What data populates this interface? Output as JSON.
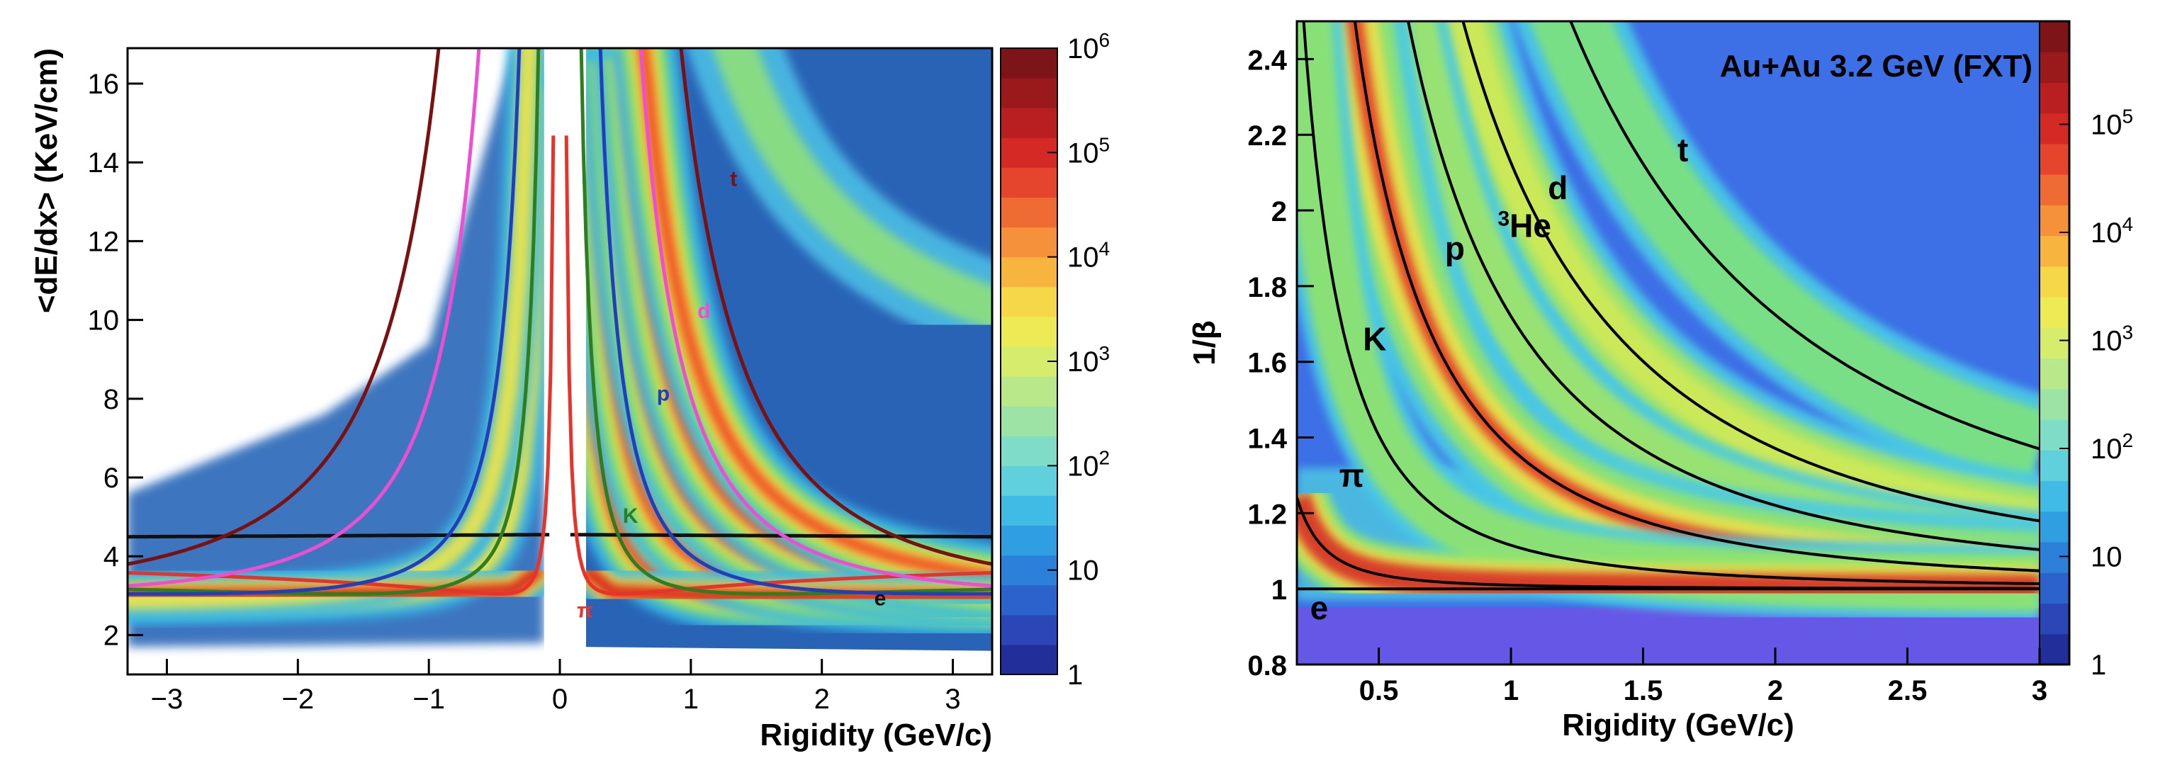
{
  "chart_data": [
    {
      "type": "heatmap",
      "title": "",
      "xlabel": "Rigidity (GeV/c)",
      "ylabel": "<dE/dx> (KeV/cm)",
      "xlim": [
        -3.3,
        3.3
      ],
      "ylim": [
        1.0,
        16.9
      ],
      "x_ticks": [
        -3,
        -2,
        -1,
        0,
        1,
        2,
        3
      ],
      "x_tick_labels": [
        "−3",
        "−2",
        "−1",
        "0",
        "1",
        "2",
        "3"
      ],
      "y_ticks": [
        2,
        4,
        6,
        8,
        10,
        12,
        14,
        16
      ],
      "y_tick_labels": [
        "2",
        "4",
        "6",
        "8",
        "10",
        "12",
        "14",
        "16"
      ],
      "z_scale": "log",
      "colorbar": {
        "range": [
          1,
          1000000
        ],
        "labels": [
          {
            "value": 1,
            "base": "1",
            "exp": ""
          },
          {
            "value": 10,
            "base": "10",
            "exp": ""
          },
          {
            "value": 100,
            "base": "10",
            "exp": "2"
          },
          {
            "value": 1000,
            "base": "10",
            "exp": "3"
          },
          {
            "value": 10000,
            "base": "10",
            "exp": "4"
          },
          {
            "value": 100000,
            "base": "10",
            "exp": "5"
          },
          {
            "value": 1000000,
            "base": "10",
            "exp": "6"
          }
        ]
      },
      "curves": [
        {
          "label": "e",
          "color": "#111111",
          "label_pos": [
            2.4,
            2.75
          ]
        },
        {
          "label": "π",
          "color": "#e8332a",
          "label_pos": [
            0.13,
            2.45
          ]
        },
        {
          "label": "K",
          "color": "#2e7d1f",
          "label_pos": [
            0.48,
            4.85
          ]
        },
        {
          "label": "p",
          "color": "#1f3fbf",
          "label_pos": [
            0.74,
            7.95
          ]
        },
        {
          "label": "d",
          "color": "#ee4fd2",
          "label_pos": [
            1.05,
            10.05
          ]
        },
        {
          "label": "t",
          "color": "#7a1010",
          "label_pos": [
            1.3,
            13.4
          ]
        }
      ]
    },
    {
      "type": "heatmap",
      "title": "Au+Au 3.2 GeV (FXT)",
      "xlabel": "Rigidity (GeV/c)",
      "ylabel": "1/β",
      "xlim": [
        0.19,
        3.0
      ],
      "ylim": [
        0.8,
        2.5
      ],
      "x_ticks": [
        0.5,
        1,
        1.5,
        2,
        2.5,
        3
      ],
      "x_tick_labels": [
        "0.5",
        "1",
        "1.5",
        "2",
        "2.5",
        "3"
      ],
      "y_ticks": [
        0.8,
        1,
        1.2,
        1.4,
        1.6,
        1.8,
        2,
        2.2,
        2.4
      ],
      "y_tick_labels": [
        "0.8",
        "1",
        "1.2",
        "1.4",
        "1.6",
        "1.8",
        "2",
        "2.2",
        "2.4"
      ],
      "z_scale": "log",
      "colorbar": {
        "range": [
          1,
          900000
        ],
        "labels": [
          {
            "value": 1,
            "base": "1",
            "exp": ""
          },
          {
            "value": 10,
            "base": "10",
            "exp": ""
          },
          {
            "value": 100,
            "base": "10",
            "exp": "2"
          },
          {
            "value": 1000,
            "base": "10",
            "exp": "3"
          },
          {
            "value": 10000,
            "base": "10",
            "exp": "4"
          },
          {
            "value": 100000,
            "base": "10",
            "exp": "5"
          }
        ]
      },
      "curves": [
        {
          "label": "e",
          "sup": "",
          "label_pos": [
            0.24,
            0.92
          ]
        },
        {
          "label": "π",
          "sup": "",
          "label_pos": [
            0.35,
            1.27
          ]
        },
        {
          "label": "K",
          "sup": "",
          "label_pos": [
            0.44,
            1.63
          ]
        },
        {
          "label": "p",
          "sup": "",
          "label_pos": [
            0.75,
            1.87
          ]
        },
        {
          "label": "He",
          "sup": "3",
          "label_pos": [
            0.95,
            1.93
          ]
        },
        {
          "label": "d",
          "sup": "",
          "label_pos": [
            1.14,
            2.03
          ]
        },
        {
          "label": "t",
          "sup": "",
          "label_pos": [
            1.63,
            2.13
          ]
        }
      ]
    }
  ]
}
